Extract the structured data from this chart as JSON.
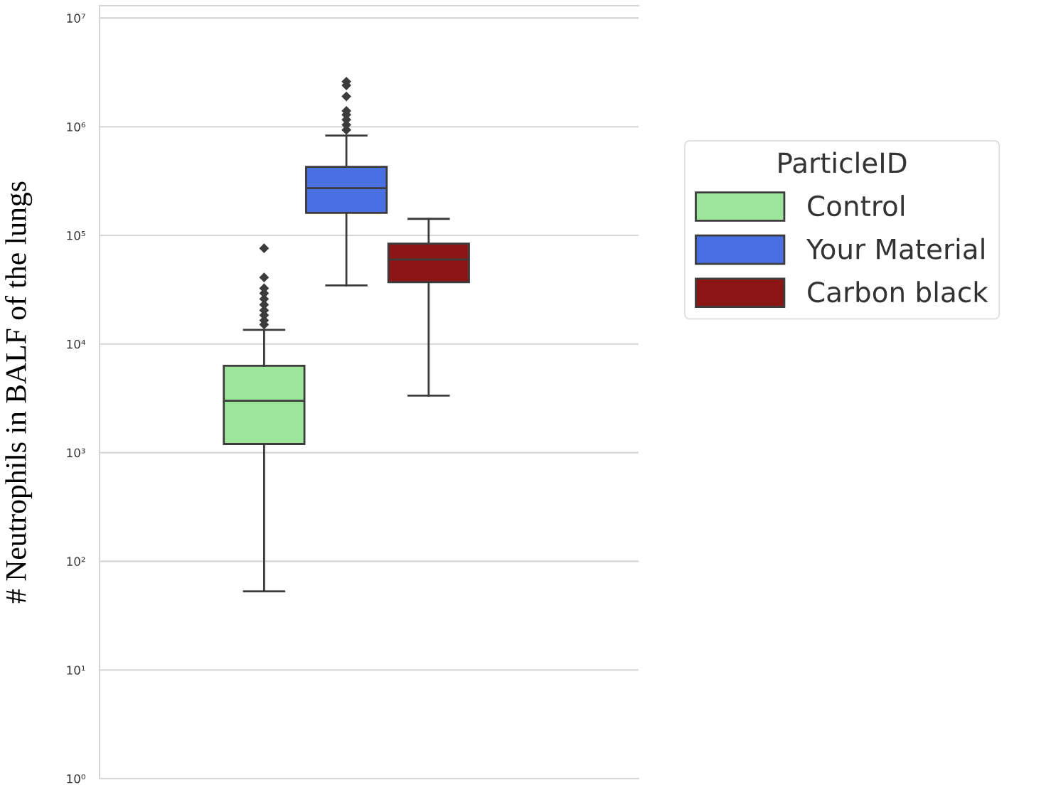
{
  "chart_data": {
    "type": "box",
    "ylabel": "# Neutrophils in BALF of the lungs",
    "legend_title": "ParticleID",
    "categories": [
      null
    ],
    "log": "y",
    "ylim": [
      1,
      13000000
    ],
    "yticks": [
      {
        "value": 1,
        "label": "10⁰"
      },
      {
        "value": 10,
        "label": "10¹"
      },
      {
        "value": 100,
        "label": "10²"
      },
      {
        "value": 1000,
        "label": "10³"
      },
      {
        "value": 10000,
        "label": "10⁴"
      },
      {
        "value": 100000,
        "label": "10⁵"
      },
      {
        "value": 1000000,
        "label": "10⁶"
      },
      {
        "value": 10000000,
        "label": "10⁷"
      }
    ],
    "grid": "y",
    "legend": "right",
    "marker": "diamond",
    "series": [
      {
        "name": "Control",
        "color": "#9ce59b",
        "boxes": [
          {
            "low": 53,
            "q1": 1200,
            "median": 3000,
            "q3": 6300,
            "high": 13500,
            "outliers": [
              15100,
              16500,
              18400,
              20400,
              23000,
              26000,
              29300,
              32600,
              41000,
              76000
            ]
          }
        ]
      },
      {
        "name": "Your Material",
        "color": "#4a6fe3",
        "boxes": [
          {
            "low": 34600,
            "q1": 161000,
            "median": 272000,
            "q3": 428000,
            "high": 830000,
            "outliers": [
              935000,
              1040000,
              1160000,
              1290000,
              1400000,
              1900000,
              2400000,
              2600000
            ]
          }
        ]
      },
      {
        "name": "Carbon black",
        "color": "#8b1414",
        "boxes": [
          {
            "low": 3350,
            "q1": 37000,
            "median": 60000,
            "q3": 84000,
            "high": 142000
          }
        ]
      }
    ]
  }
}
